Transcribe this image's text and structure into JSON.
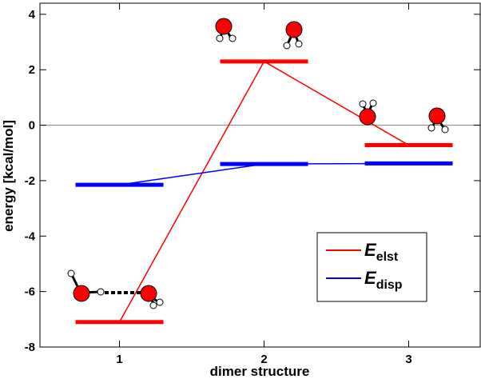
{
  "chart_data": {
    "type": "line",
    "xlabel": "dimer structure",
    "ylabel": "energy [kcal/mol]",
    "xlim": [
      0.45,
      3.5
    ],
    "ylim": [
      -8,
      4.4
    ],
    "x_ticks": [
      1,
      2,
      3
    ],
    "y_ticks": [
      -8,
      -6,
      -4,
      -2,
      0,
      2,
      4
    ],
    "zero_line": true,
    "legend_position": "lower-right",
    "colors": {
      "elst": "#ff0000",
      "disp": "#0000ff"
    },
    "series": [
      {
        "key": "elst",
        "name_main": "E",
        "name_sub": "elst",
        "color": "#ff0000",
        "x": [
          1,
          2,
          3
        ],
        "values": [
          -7.1,
          2.3,
          -0.72
        ]
      },
      {
        "key": "disp",
        "name_main": "E",
        "name_sub": "disp",
        "color": "#0000ff",
        "x": [
          1,
          2,
          3
        ],
        "values": [
          -2.15,
          -1.4,
          -1.38
        ]
      }
    ],
    "annotations": [
      "water-dimer-structure-1",
      "water-dimer-structure-2",
      "water-dimer-structure-3"
    ]
  }
}
